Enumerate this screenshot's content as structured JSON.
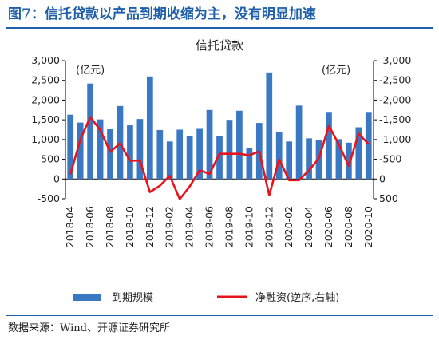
{
  "figure_title": "图7：信托贷款以产品到期收缩为主，没有明显加速",
  "source_note": "数据来源：Wind、开源证券研究所",
  "chart_data": {
    "type": "bar",
    "title": "信托贷款",
    "left_unit": "(亿元)",
    "right_unit": "(亿元)",
    "ylim_left": [
      -500,
      3000
    ],
    "yticks_left": [
      "3,000",
      "2,500",
      "2,000",
      "1,500",
      "1,000",
      "500",
      "0",
      "-500"
    ],
    "yticks_left_values": [
      3000,
      2500,
      2000,
      1500,
      1000,
      500,
      0,
      -500
    ],
    "ylim_right_reversed": [
      -3000,
      500
    ],
    "yticks_right": [
      "-3,000",
      "-2,500",
      "-2,000",
      "-1,500",
      "-1,000",
      "-500",
      "0",
      "500"
    ],
    "yticks_right_values": [
      -3000,
      -2500,
      -2000,
      -1500,
      -1000,
      -500,
      0,
      500
    ],
    "categories": [
      "2018-04",
      "2018-05",
      "2018-06",
      "2018-07",
      "2018-08",
      "2018-09",
      "2018-10",
      "2018-11",
      "2018-12",
      "2019-01",
      "2019-02",
      "2019-03",
      "2019-04",
      "2019-05",
      "2019-06",
      "2019-07",
      "2019-08",
      "2019-09",
      "2019-10",
      "2019-11",
      "2019-12",
      "2020-01",
      "2020-02",
      "2020-03",
      "2020-04",
      "2020-05",
      "2020-06",
      "2020-07",
      "2020-08",
      "2020-09",
      "2020-10"
    ],
    "x_tick_labels": [
      "2018-04",
      "2018-06",
      "2018-08",
      "2018-10",
      "2018-12",
      "2019-02",
      "2019-04",
      "2019-06",
      "2019-08",
      "2019-10",
      "2019-12",
      "2020-02",
      "2020-04",
      "2020-06",
      "2020-08",
      "2020-10"
    ],
    "series": [
      {
        "name": "到期规模",
        "axis": "left",
        "kind": "bar",
        "color": "#3a78c4",
        "values": [
          1630,
          1430,
          2420,
          1510,
          1260,
          1850,
          1360,
          1520,
          2600,
          1240,
          950,
          1250,
          1080,
          1270,
          1750,
          1080,
          1500,
          1730,
          790,
          1420,
          2700,
          1200,
          950,
          1860,
          1030,
          990,
          1700,
          1010,
          920,
          1310,
          1700
        ]
      },
      {
        "name": "净融资(逆序,右轴)",
        "axis": "right",
        "kind": "line",
        "color": "#e8141c",
        "values": [
          -120,
          -1000,
          -1570,
          -1240,
          -690,
          -900,
          -460,
          -470,
          330,
          170,
          -80,
          510,
          190,
          -220,
          -130,
          -640,
          -640,
          -640,
          -600,
          -700,
          410,
          -500,
          30,
          30,
          -220,
          -520,
          -1350,
          -880,
          -330,
          -1150,
          -880
        ]
      }
    ]
  }
}
